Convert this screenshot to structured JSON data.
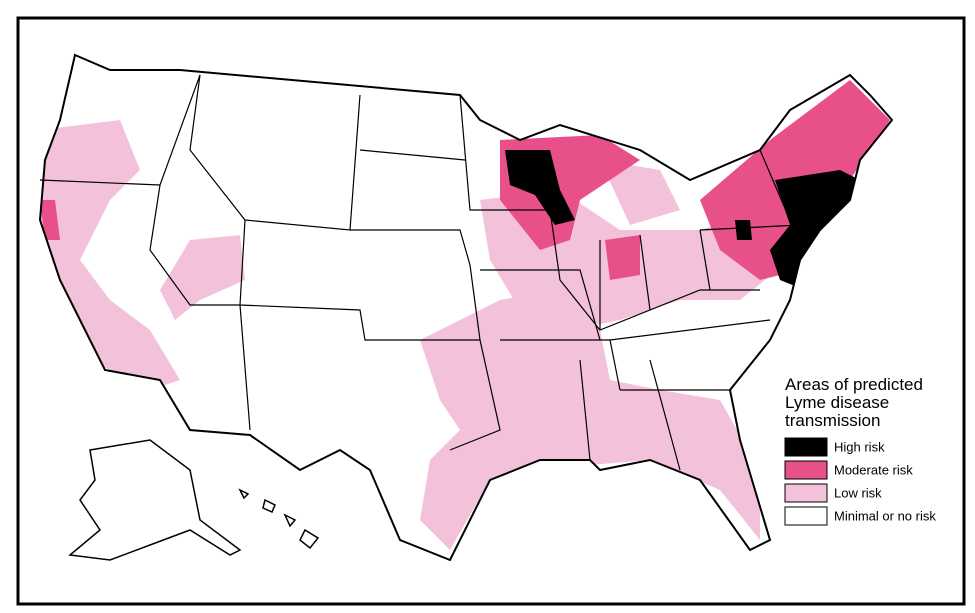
{
  "legend": {
    "title_lines": [
      "Areas of predicted",
      "Lyme disease",
      "transmission"
    ],
    "items": [
      {
        "label": "High risk",
        "color": "#000000"
      },
      {
        "label": "Moderate risk",
        "color": "#e8508a"
      },
      {
        "label": "Low risk",
        "color": "#f3c2da"
      },
      {
        "label": "Minimal or no risk",
        "color": "#ffffff"
      }
    ]
  }
}
